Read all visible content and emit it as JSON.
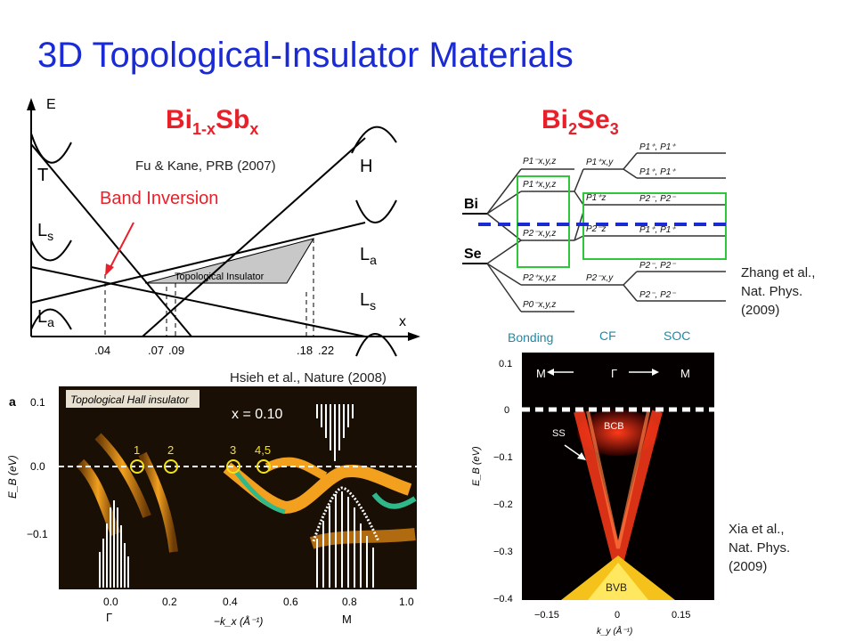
{
  "title": "3D Topological-Insulator Materials",
  "bisb": {
    "formula": {
      "base1": "Bi",
      "sub1": "1-x",
      "base2": "Sb",
      "sub2": "x"
    },
    "citation": "Fu & Kane, PRB (2007)",
    "band_inversion": "Band Inversion",
    "axis_e": "E",
    "axis_x": "x",
    "labels": {
      "T": "T",
      "H": "H",
      "Ls": "L",
      "Ls_sub": "s",
      "La": "L",
      "La_sub": "a",
      "La_right": "L",
      "La_right_sub": "a",
      "Ls_right": "L",
      "Ls_right_sub": "s"
    },
    "region_label": "Topological Insulator",
    "ticks": [
      ".04",
      ".07",
      ".09",
      ".18",
      ".22"
    ]
  },
  "arpes_bisb": {
    "citation": "Hsieh et al., Nature (2008)",
    "panel": "a",
    "panel_title": "Topological Hall insulator",
    "x_label": "x = 0.10",
    "peaks": [
      "1",
      "2",
      "3",
      "4,5"
    ],
    "yticks": [
      "0.1",
      "0.0",
      "−0.1"
    ],
    "ylabel": "E_B (eV)",
    "xticks": [
      "0.0",
      "0.2",
      "0.4",
      "0.6",
      "0.8",
      "1.0"
    ],
    "xlabel": "−k_x (Å⁻¹)",
    "point_gamma": "Γ",
    "point_m": "M"
  },
  "bise": {
    "formula": {
      "base1": "Bi",
      "sub1": "2",
      "base2": "Se",
      "sub2": "3"
    },
    "bi_label": "Bi",
    "se_label": "Se",
    "column_labels": [
      "Bonding",
      "CF",
      "SOC"
    ],
    "citation": [
      "Zhang et al.,",
      "Nat. Phys.",
      "(2009)"
    ]
  },
  "arpes_bise": {
    "yticks": [
      "0.1",
      "0",
      "−0.1",
      "−0.2",
      "−0.3",
      "−0.4"
    ],
    "ylabel": "E_B (eV)",
    "xticks": [
      "−0.15",
      "0",
      "0.15"
    ],
    "xlabel": "k_y (Å⁻¹)",
    "top_labels": {
      "m_left": "M",
      "gamma": "Γ",
      "m_right": "M"
    },
    "bcb": "BCB",
    "bvb": "BVB",
    "ss": "SS",
    "citation": [
      "Xia et al.,",
      "Nat. Phys.",
      "(2009)"
    ]
  },
  "colors": {
    "title": "#1a2bd6",
    "accent_red": "#e8202a",
    "teal": "#1f8aa6",
    "green_box": "#2ec63a",
    "dash_blue": "#1a2bd6"
  }
}
